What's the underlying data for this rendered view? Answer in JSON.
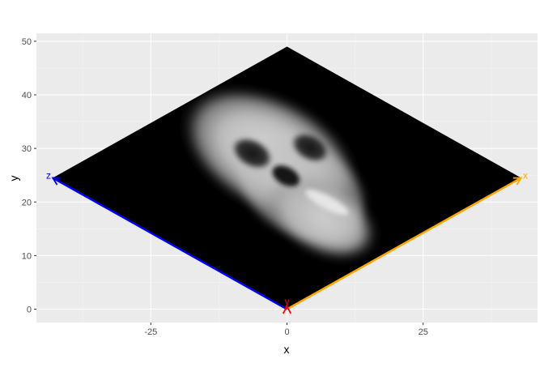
{
  "chart_data": {
    "type": "heatmap",
    "title": "",
    "xlabel": "x",
    "ylabel": "y",
    "xlim": [
      -46,
      46
    ],
    "ylim": [
      -2.5,
      51.5
    ],
    "x_ticks": [
      -25,
      0,
      25
    ],
    "x_tick_labels": [
      "-25",
      "0",
      "25"
    ],
    "y_ticks": [
      0,
      10,
      20,
      30,
      40,
      50
    ],
    "y_tick_labels": [
      "0",
      "10",
      "20",
      "30",
      "40",
      "50"
    ],
    "grid": true,
    "legend": "none",
    "panel_color": "#ebebeb",
    "grid_color": "#ffffff",
    "plane": {
      "description_values": [
        [
          0,
          0
        ],
        [
          43,
          24.5
        ],
        [
          0,
          49
        ],
        [
          -43,
          24.5
        ]
      ],
      "fill": "#000000"
    },
    "image_layer": {
      "colormap": "grayscale",
      "subject": "skull"
    },
    "axes_3d": [
      {
        "name": "x",
        "label": "x",
        "color": "#FFA500",
        "from": [
          0,
          0
        ],
        "to": [
          43,
          24.5
        ]
      },
      {
        "name": "z",
        "label": "z",
        "color": "#0000FF",
        "from": [
          0,
          0
        ],
        "to": [
          -43,
          24.5
        ]
      },
      {
        "name": "y",
        "label": "y",
        "color": "#FF0000",
        "from": [
          0,
          0
        ],
        "to": [
          0,
          0.5
        ]
      }
    ]
  }
}
